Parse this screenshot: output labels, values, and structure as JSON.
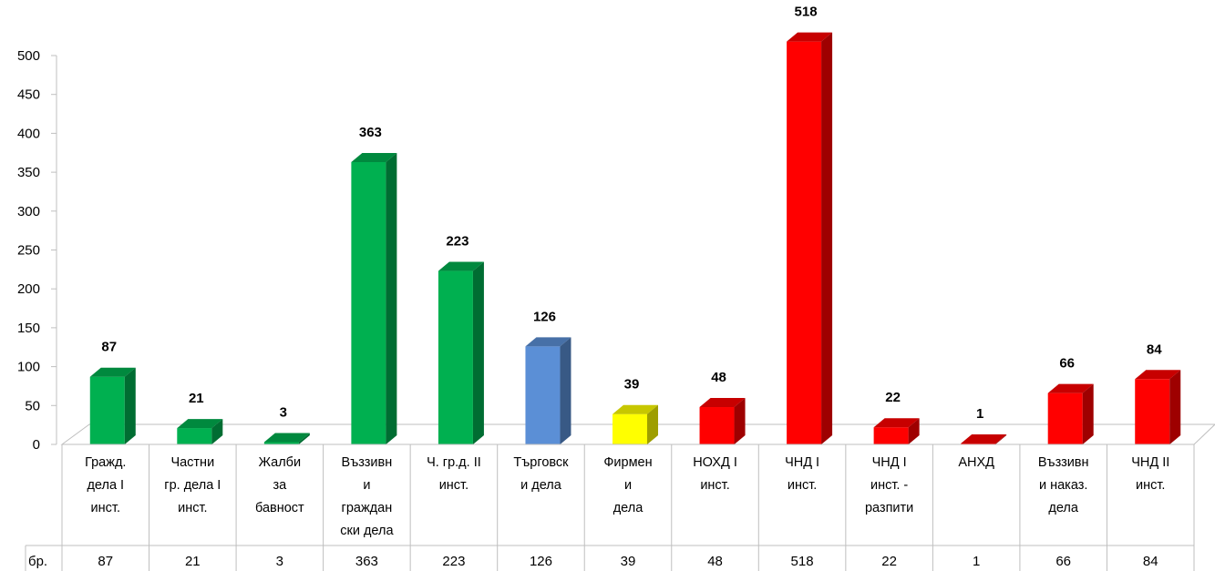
{
  "chart_data": {
    "type": "bar",
    "ylim": [
      0,
      500
    ],
    "yticks": [
      0,
      50,
      100,
      150,
      200,
      250,
      300,
      350,
      400,
      450,
      500
    ],
    "categories": [
      [
        "Гражд.",
        "дела І",
        "инст."
      ],
      [
        "Частни",
        "гр. дела І",
        "инст."
      ],
      [
        "Жалби",
        "за",
        "бавност"
      ],
      [
        "Въззивн",
        "и",
        "граждан",
        "ски дела"
      ],
      [
        "Ч. гр.д. ІІ",
        "инст."
      ],
      [
        "Търговск",
        "и дела"
      ],
      [
        "Фирмен",
        "и",
        "дела"
      ],
      [
        "НОХД І",
        "инст."
      ],
      [
        "ЧНД І",
        "инст."
      ],
      [
        "ЧНД І",
        "инст. -",
        "разпити"
      ],
      [
        "АНХД"
      ],
      [
        "Въззивн",
        "и наказ.",
        "дела"
      ],
      [
        "ЧНД ІІ",
        "инст."
      ]
    ],
    "series": [
      {
        "name": "бр.",
        "values": [
          87,
          21,
          3,
          363,
          223,
          126,
          39,
          48,
          518,
          22,
          1,
          66,
          84
        ]
      }
    ],
    "bar_colors": [
      "#00B050",
      "#00B050",
      "#00B050",
      "#00B050",
      "#00B050",
      "#5B8FD6",
      "#FFFF00",
      "#FF0000",
      "#FF0000",
      "#FF0000",
      "#FF0000",
      "#FF0000",
      "#FF0000"
    ],
    "data_labels": true,
    "grid": false,
    "legend": "none",
    "data_table": true
  }
}
